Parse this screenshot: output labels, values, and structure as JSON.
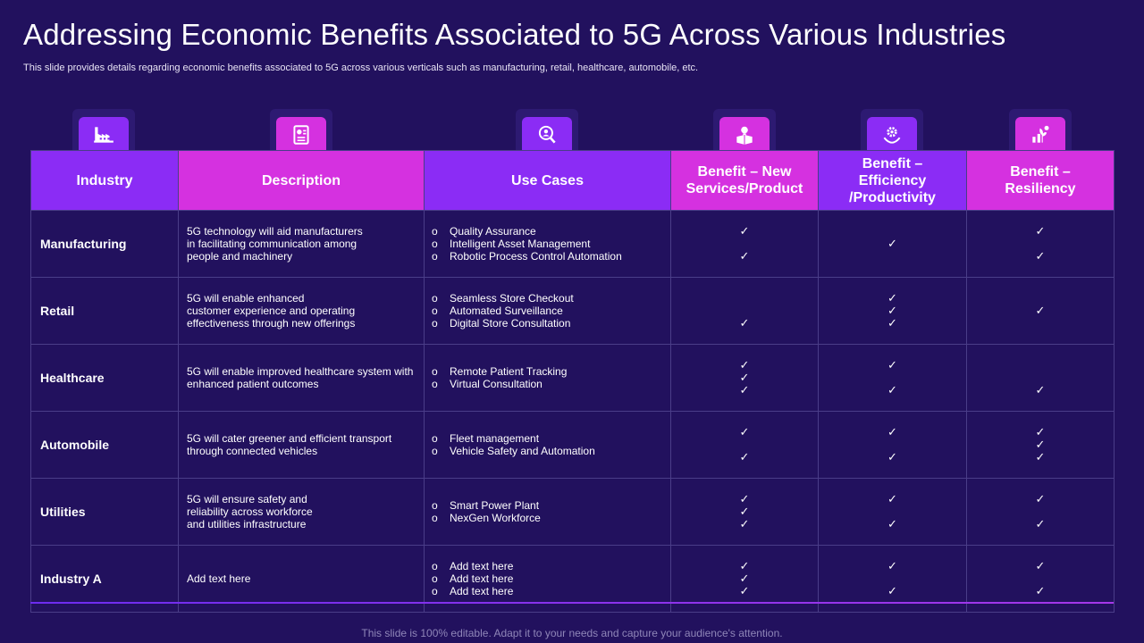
{
  "title": "Addressing Economic Benefits Associated to 5G Across Various Industries",
  "subtitle": "This slide provides details regarding economic benefits associated to 5G across various verticals such as manufacturing, retail, healthcare, automobile, etc.",
  "footer": "This slide is 100% editable. Adapt it to your needs and capture your audience's attention.",
  "colors": {
    "background": "#22115e",
    "violet": "#8b2cf5",
    "magenta": "#d531e0"
  },
  "icons": [
    "factory-icon",
    "document-chart-icon",
    "search-person-icon",
    "idea-box-icon",
    "gear-hand-icon",
    "growth-plant-icon"
  ],
  "headers": {
    "industry": "Industry",
    "description": "Description",
    "use_cases": "Use Cases",
    "benefit_new": [
      "Benefit – New",
      "Services/Product"
    ],
    "benefit_efficiency": [
      "Benefit –",
      "Efficiency",
      "/Productivity"
    ],
    "benefit_resiliency": [
      "Benefit –",
      "Resiliency"
    ]
  },
  "bullet_marker": "o",
  "rows": [
    {
      "industry": "Manufacturing",
      "description": [
        "5G technology will aid manufacturers",
        "in facilitating communication among",
        "people and machinery"
      ],
      "use_cases": [
        "Quality Assurance",
        "Intelligent Asset Management",
        "Robotic Process Control Automation"
      ],
      "new": [
        "✓",
        "",
        "✓"
      ],
      "eff": [
        "✓"
      ],
      "res": [
        "✓",
        "",
        "✓"
      ]
    },
    {
      "industry": "Retail",
      "description": [
        "5G will enable enhanced",
        "customer experience and operating",
        "effectiveness through new offerings"
      ],
      "use_cases": [
        "Seamless Store Checkout",
        "Automated Surveillance",
        "Digital Store Consultation"
      ],
      "new": [
        "",
        "",
        "✓"
      ],
      "eff": [
        "✓",
        "✓",
        "✓"
      ],
      "res": [
        "✓"
      ]
    },
    {
      "industry": "Healthcare",
      "description": [
        "5G will enable improved healthcare system with",
        "enhanced patient outcomes"
      ],
      "use_cases": [
        "Remote Patient Tracking",
        "Virtual Consultation"
      ],
      "new": [
        "✓",
        "✓",
        "✓"
      ],
      "eff": [
        "✓",
        "",
        "✓"
      ],
      "res": [
        "",
        "",
        "✓"
      ]
    },
    {
      "industry": "Automobile",
      "description": [
        "5G will cater greener and efficient transport",
        "through connected vehicles"
      ],
      "use_cases": [
        "Fleet management",
        "Vehicle Safety and Automation"
      ],
      "new": [
        "✓",
        "",
        "✓"
      ],
      "eff": [
        "✓",
        "",
        "✓"
      ],
      "res": [
        "✓",
        "✓",
        "✓"
      ]
    },
    {
      "industry": "Utilities",
      "description": [
        "5G will ensure safety and",
        "reliability across workforce",
        "and utilities infrastructure"
      ],
      "use_cases": [
        "Smart Power Plant",
        "NexGen Workforce"
      ],
      "new": [
        "✓",
        "✓",
        "✓"
      ],
      "eff": [
        "✓",
        "",
        "✓"
      ],
      "res": [
        "✓",
        "",
        "✓"
      ]
    },
    {
      "industry": "Industry A",
      "description": [
        "Add text here"
      ],
      "use_cases": [
        "Add text here",
        "Add text here",
        "Add text here"
      ],
      "new": [
        "✓",
        "✓",
        "✓"
      ],
      "eff": [
        "✓",
        "",
        "✓"
      ],
      "res": [
        "✓",
        "",
        "✓"
      ]
    }
  ]
}
